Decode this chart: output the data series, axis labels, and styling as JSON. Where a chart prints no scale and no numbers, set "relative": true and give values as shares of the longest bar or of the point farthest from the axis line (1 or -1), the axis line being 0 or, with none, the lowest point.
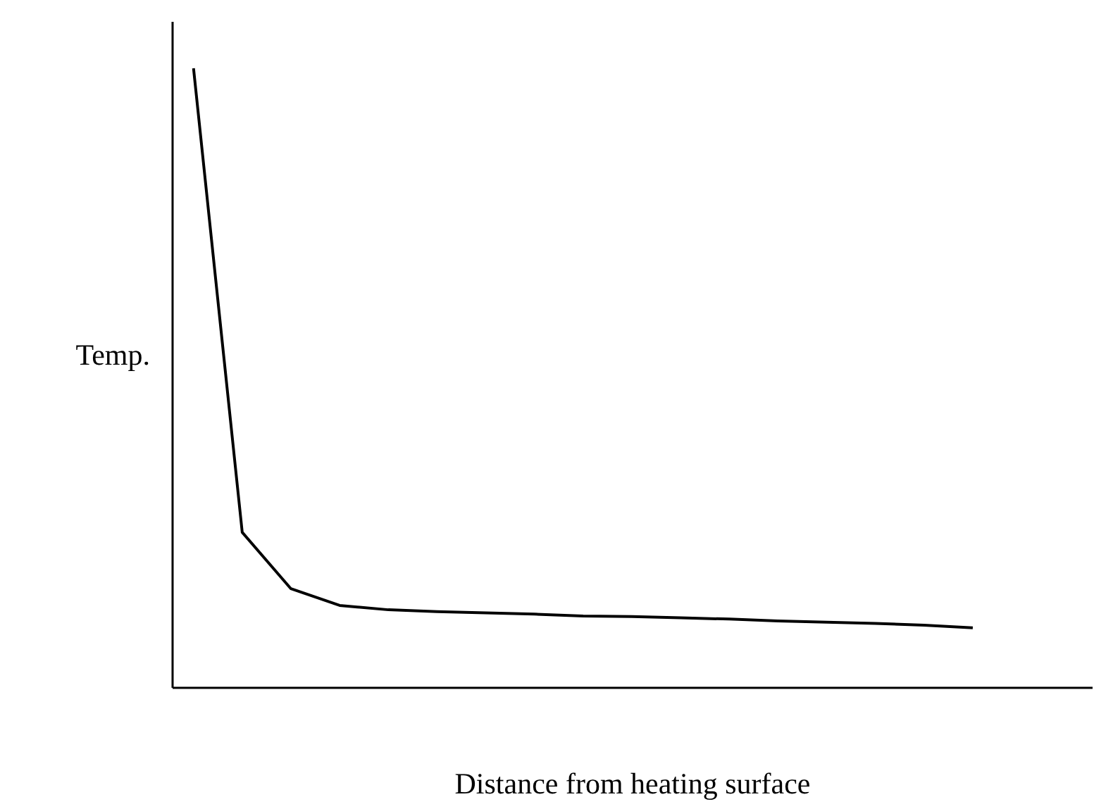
{
  "chart_data": {
    "type": "line",
    "relative": true,
    "xlabel": "Distance from heating surface",
    "ylabel": "Temp.",
    "grid": false,
    "marker": "none",
    "line_style": "solid",
    "categories": [
      null,
      null,
      null,
      null,
      null,
      null,
      null,
      null,
      null,
      null,
      null,
      null,
      null,
      null,
      null,
      null,
      null
    ],
    "series": [
      {
        "color": "#000000",
        "values": [
          1,
          0.251,
          0.16,
          0.133,
          0.126,
          0.123,
          0.121,
          0.119,
          0.116,
          0.115,
          0.113,
          0.111,
          0.108,
          0.106,
          0.104,
          0.101,
          0.097
        ]
      }
    ]
  }
}
